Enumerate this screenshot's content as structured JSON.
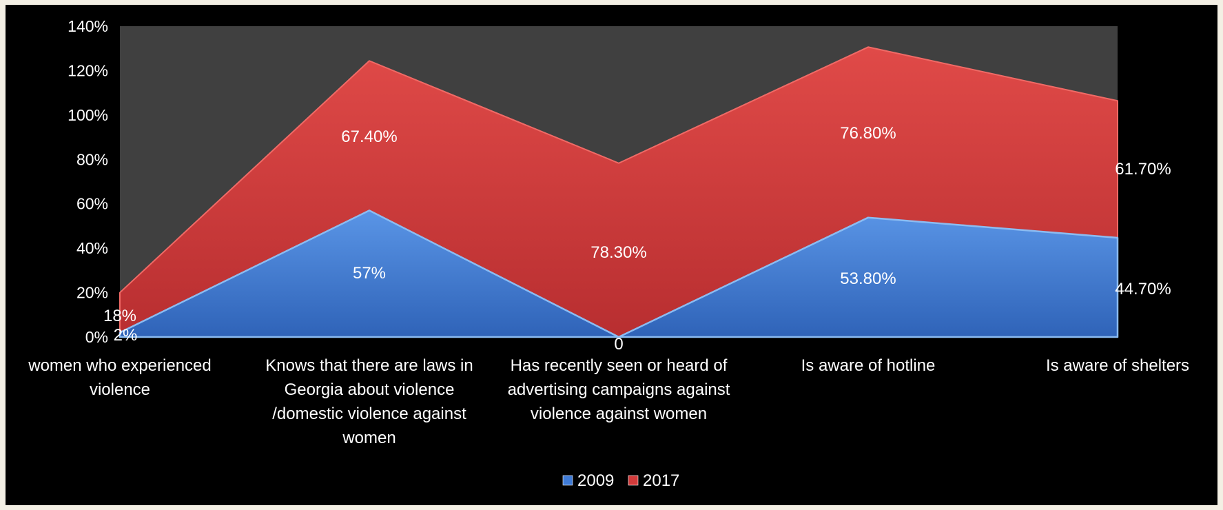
{
  "chart_data": {
    "type": "area",
    "stacked": true,
    "categories": [
      "women who experienced violence",
      "Knows that there are laws in Georgia about violence /domestic violence against women",
      "Has recently seen or heard of advertising campaigns against violence against women",
      "Is aware of hotline",
      "Is aware of shelters"
    ],
    "category_lines": [
      [
        "women who experienced",
        "violence"
      ],
      [
        "Knows that there are laws in",
        "Georgia about violence",
        "/domestic violence against",
        "women"
      ],
      [
        "Has recently seen or heard of",
        "advertising campaigns against",
        "violence against women"
      ],
      [
        "Is aware of hotline"
      ],
      [
        "Is aware of shelters"
      ]
    ],
    "series": [
      {
        "name": "2009",
        "color": "#3f7bd6",
        "values": [
          2,
          57,
          0,
          53.8,
          44.7
        ],
        "labels": [
          "2%",
          "57%",
          "0",
          "53.80%",
          "44.70%"
        ]
      },
      {
        "name": "2017",
        "color": "#d23a3a",
        "values": [
          18,
          67.4,
          78.3,
          76.8,
          61.7
        ],
        "labels": [
          "18%",
          "67.40%",
          "78.30%",
          "76.80%",
          "61.70%"
        ]
      }
    ],
    "yticks": [
      "0%",
      "20%",
      "40%",
      "60%",
      "80%",
      "100%",
      "120%",
      "140%"
    ],
    "ylim": [
      0,
      140
    ],
    "grid": false,
    "plot_background": "#404040",
    "background": "#000000",
    "legend_position": "bottom"
  }
}
